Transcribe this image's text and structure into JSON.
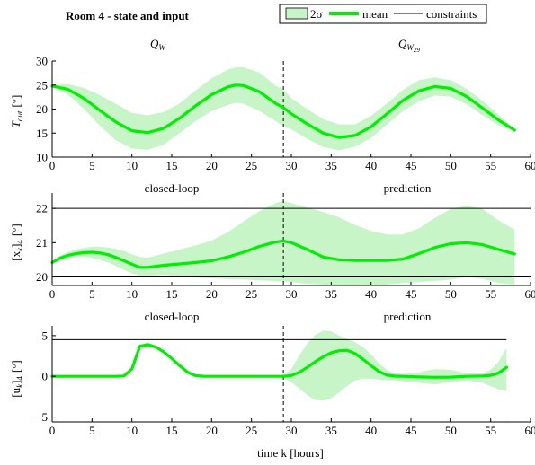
{
  "figure": {
    "title": "Room 4 - state and input",
    "legend": {
      "items": [
        {
          "label": "2σ",
          "kind": "band"
        },
        {
          "label": "mean",
          "kind": "line"
        },
        {
          "label": "constraints",
          "kind": "constraint"
        }
      ],
      "placement": "top-right"
    },
    "colors": {
      "mean": "#00ee00",
      "band": "#c8f5c8",
      "constraint": "#000000",
      "divider": "#000000"
    },
    "xlabel": "time k [hours]"
  },
  "chart_data": [
    {
      "type": "line",
      "id": "tout",
      "ylabel_main": "T",
      "ylabel_sub": "out",
      "ylabel_unit": "[°]",
      "xlim": [
        0,
        60
      ],
      "ylim": [
        10,
        30
      ],
      "xticks": [
        0,
        5,
        10,
        15,
        20,
        25,
        30,
        35,
        40,
        45,
        50,
        55,
        60
      ],
      "yticks": [
        10,
        15,
        20,
        25,
        30
      ],
      "divider_x": 29,
      "left_annotation": {
        "main": "Q",
        "sub": "W"
      },
      "right_annotation": {
        "main": "Q",
        "sub": "W",
        "subsub": "29"
      },
      "below_labels": {
        "left": "closed-loop",
        "right": "prediction"
      },
      "constraints": [],
      "series": [
        {
          "name": "mean",
          "x": [
            0,
            2,
            4,
            6,
            8,
            10,
            12,
            14,
            16,
            18,
            20,
            22,
            23,
            24,
            26,
            28,
            29,
            30,
            32,
            34,
            36,
            38,
            40,
            42,
            44,
            46,
            48,
            50,
            52,
            54,
            56,
            58
          ],
          "y": [
            24.8,
            24.1,
            22.2,
            19.7,
            17.3,
            15.5,
            15.1,
            16.0,
            18.1,
            20.7,
            23.0,
            24.6,
            25.0,
            24.9,
            23.6,
            21.2,
            20.3,
            19.0,
            16.9,
            15.0,
            14.1,
            14.5,
            16.3,
            19.0,
            21.8,
            23.8,
            24.7,
            24.3,
            22.6,
            20.2,
            17.7,
            15.6
          ]
        }
      ],
      "band": {
        "name": "2σ",
        "x": [
          0,
          2,
          4,
          6,
          8,
          10,
          12,
          14,
          16,
          18,
          20,
          22,
          23,
          24,
          26,
          28,
          29,
          30,
          32,
          34,
          36,
          38,
          40,
          42,
          44,
          46,
          48,
          50,
          52,
          54,
          56,
          58
        ],
        "lower": [
          24.6,
          23.0,
          20.0,
          16.5,
          13.5,
          11.8,
          11.5,
          12.6,
          15.0,
          17.5,
          19.6,
          20.8,
          21.3,
          21.1,
          19.6,
          17.5,
          16.5,
          15.8,
          13.8,
          12.1,
          11.4,
          12.2,
          14.0,
          16.8,
          19.6,
          21.6,
          22.8,
          22.6,
          21.0,
          18.7,
          16.6,
          15.4
        ],
        "upper": [
          25.0,
          25.2,
          24.4,
          22.9,
          21.1,
          19.2,
          18.7,
          19.4,
          21.2,
          23.9,
          26.4,
          28.2,
          28.7,
          28.7,
          27.6,
          24.9,
          24.1,
          22.3,
          20.0,
          17.9,
          16.8,
          16.8,
          18.6,
          21.2,
          24.0,
          26.0,
          26.6,
          26.0,
          24.2,
          21.7,
          18.8,
          15.8
        ]
      }
    },
    {
      "type": "line",
      "id": "xk",
      "ylabel_main": "[x",
      "ylabel_sub": "k",
      "ylabel_after": "]",
      "ylabel_sub2": "4",
      "ylabel_unit": "[°]",
      "xlim": [
        0,
        60
      ],
      "ylim": [
        19.75,
        22.45
      ],
      "xticks": [
        0,
        5,
        10,
        15,
        20,
        25,
        30,
        35,
        40,
        45,
        50,
        55,
        60
      ],
      "yticks": [
        20,
        21,
        22
      ],
      "divider_x": 29,
      "below_labels": {
        "left": "closed-loop",
        "right": "prediction"
      },
      "constraints": [
        20,
        22
      ],
      "series": [
        {
          "name": "mean",
          "x": [
            0,
            1,
            2,
            3,
            4,
            5,
            6,
            7,
            8,
            9,
            10,
            11,
            12,
            14,
            16,
            18,
            20,
            22,
            24,
            26,
            28,
            29,
            30,
            32,
            34,
            36,
            38,
            40,
            42,
            44,
            46,
            48,
            50,
            52,
            54,
            56,
            58
          ],
          "y": [
            20.42,
            20.55,
            20.63,
            20.68,
            20.71,
            20.72,
            20.7,
            20.65,
            20.57,
            20.47,
            20.37,
            20.28,
            20.28,
            20.34,
            20.38,
            20.42,
            20.47,
            20.58,
            20.72,
            20.89,
            21.02,
            21.05,
            21.0,
            20.8,
            20.58,
            20.5,
            20.48,
            20.48,
            20.48,
            20.52,
            20.68,
            20.86,
            20.97,
            21.0,
            20.94,
            20.8,
            20.67
          ]
        }
      ],
      "band": {
        "name": "2σ",
        "x": [
          0,
          1,
          2,
          3,
          4,
          5,
          6,
          7,
          8,
          9,
          10,
          11,
          12,
          14,
          16,
          18,
          20,
          22,
          24,
          26,
          28,
          29,
          30,
          32,
          34,
          36,
          38,
          40,
          42,
          44,
          46,
          48,
          50,
          52,
          54,
          56,
          58
        ],
        "lower": [
          20.4,
          20.5,
          20.56,
          20.58,
          20.58,
          20.56,
          20.5,
          20.42,
          20.32,
          20.2,
          20.1,
          20.04,
          20.04,
          20.06,
          20.02,
          19.98,
          19.96,
          19.94,
          19.92,
          19.9,
          19.88,
          19.87,
          19.85,
          19.8,
          19.78,
          19.76,
          19.76,
          19.76,
          19.78,
          19.82,
          19.85,
          19.88,
          19.92,
          20.0,
          19.94,
          19.82,
          19.78
        ],
        "upper": [
          20.45,
          20.62,
          20.73,
          20.8,
          20.85,
          20.88,
          20.88,
          20.86,
          20.82,
          20.76,
          20.66,
          20.58,
          20.56,
          20.68,
          20.8,
          20.92,
          21.06,
          21.3,
          21.62,
          21.92,
          22.15,
          22.22,
          22.15,
          22.02,
          21.9,
          21.74,
          21.52,
          21.34,
          21.24,
          21.24,
          21.42,
          21.72,
          21.98,
          22.08,
          21.98,
          21.65,
          21.38
        ]
      }
    },
    {
      "type": "line",
      "id": "uk",
      "ylabel_main": "[u",
      "ylabel_sub": "k",
      "ylabel_after": "]",
      "ylabel_sub2": "4",
      "ylabel_unit": "[°]",
      "xlim": [
        0,
        60
      ],
      "ylim": [
        -5.6,
        6.2
      ],
      "xticks": [
        0,
        5,
        10,
        15,
        20,
        25,
        30,
        35,
        40,
        45,
        50,
        55,
        60
      ],
      "yticks": [
        -5,
        0,
        5
      ],
      "ytick_labels": [
        "−5",
        "0",
        "5"
      ],
      "divider_x": 29,
      "constraints": [
        4.5,
        -5
      ],
      "constraint_xmax": 57,
      "series": [
        {
          "name": "mean",
          "x": [
            0,
            2,
            4,
            6,
            8,
            9,
            10,
            11,
            12,
            13,
            14,
            15,
            16,
            17,
            18,
            19,
            20,
            22,
            24,
            26,
            28,
            29,
            30,
            31,
            32,
            33,
            34,
            35,
            36,
            37,
            38,
            39,
            40,
            41,
            42,
            43,
            44,
            46,
            48,
            50,
            52,
            54,
            55,
            56,
            57
          ],
          "y": [
            0,
            0,
            0,
            0,
            0,
            0.05,
            0.9,
            3.7,
            3.9,
            3.6,
            3.0,
            2.2,
            1.3,
            0.5,
            0.08,
            0.01,
            0,
            0,
            0,
            0,
            0,
            0,
            0.1,
            0.5,
            1.1,
            1.8,
            2.4,
            2.9,
            3.15,
            3.2,
            2.8,
            2.1,
            1.3,
            0.6,
            0.15,
            0.02,
            0,
            -0.08,
            -0.12,
            -0.1,
            0,
            0.05,
            0.12,
            0.4,
            1.1
          ]
        }
      ],
      "band": {
        "name": "2σ",
        "x": [
          0,
          2,
          4,
          6,
          8,
          9,
          10,
          11,
          12,
          13,
          14,
          15,
          16,
          17,
          18,
          19,
          20,
          22,
          24,
          26,
          28,
          29,
          30,
          31,
          32,
          33,
          34,
          35,
          36,
          37,
          38,
          39,
          40,
          41,
          42,
          43,
          44,
          46,
          48,
          50,
          52,
          54,
          55,
          56,
          57
        ],
        "lower": [
          0,
          0,
          0,
          0,
          0,
          0,
          0.7,
          3.5,
          3.7,
          3.4,
          2.8,
          2.0,
          1.1,
          0.3,
          0,
          -0.02,
          -0.02,
          -0.02,
          -0.02,
          -0.02,
          -0.05,
          -0.2,
          -0.7,
          -1.5,
          -2.3,
          -2.9,
          -3.0,
          -2.7,
          -2.0,
          -1.2,
          -0.5,
          -0.3,
          -0.3,
          -0.4,
          -0.5,
          -0.5,
          -0.6,
          -0.8,
          -1.0,
          -0.7,
          -0.5,
          -0.8,
          -1.2,
          -1.6,
          -1.8
        ],
        "upper": [
          0,
          0,
          0,
          0,
          0,
          0.1,
          1.1,
          3.9,
          4.1,
          3.8,
          3.2,
          2.4,
          1.5,
          0.7,
          0.16,
          0.04,
          0.02,
          0.02,
          0.02,
          0.02,
          0.06,
          0.2,
          0.9,
          2.6,
          4.0,
          5.1,
          5.6,
          5.5,
          5.0,
          4.6,
          4.2,
          3.6,
          2.7,
          1.6,
          0.8,
          0.4,
          0.3,
          0.5,
          0.9,
          0.8,
          0.4,
          0.4,
          0.8,
          1.8,
          3.5
        ]
      }
    }
  ]
}
